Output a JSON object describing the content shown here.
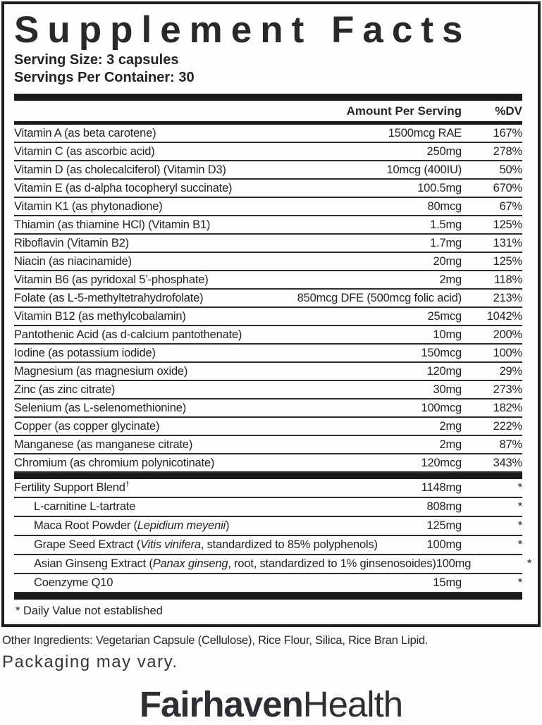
{
  "colors": {
    "ink": "#28282a",
    "bar": "#1b1b1d",
    "panel_border": "#1e1e20",
    "background": "#fdfdfd"
  },
  "panel": {
    "title": "Supplement Facts",
    "serving_size": "Serving Size: 3 capsules",
    "servings_per_container": "Servings Per Container: 30",
    "columns": {
      "amount": "Amount Per Serving",
      "dv": "%DV"
    },
    "nutrients": [
      {
        "name": "Vitamin A (as beta carotene)",
        "amount": "1500mcg RAE",
        "dv": "167%"
      },
      {
        "name": "Vitamin C (as ascorbic acid)",
        "amount": "250mg",
        "dv": "278%"
      },
      {
        "name": "Vitamin D (as cholecalciferol) (Vitamin D3)",
        "amount": "10mcg (400IU)",
        "dv": "50%"
      },
      {
        "name": "Vitamin E (as d-alpha tocopheryl succinate)",
        "amount": "100.5mg",
        "dv": "670%"
      },
      {
        "name": "Vitamin K1 (as phytonadione)",
        "amount": "80mcg",
        "dv": "67%"
      },
      {
        "name": "Thiamin (as thiamine HCl) (Vitamin B1)",
        "amount": "1.5mg",
        "dv": "125%"
      },
      {
        "name": "Riboflavin (Vitamin B2)",
        "amount": "1.7mg",
        "dv": "131%"
      },
      {
        "name": "Niacin (as niacinamide)",
        "amount": "20mg",
        "dv": "125%"
      },
      {
        "name": "Vitamin B6 (as pyridoxal 5’-phosphate)",
        "amount": "2mg",
        "dv": "118%"
      },
      {
        "name": "Folate (as L-5-methyltetrahydrofolate)",
        "amount": "850mcg DFE (500mcg folic acid)",
        "dv": "213%"
      },
      {
        "name": "Vitamin B12 (as methylcobalamin)",
        "amount": "25mcg",
        "dv": "1042%"
      },
      {
        "name": "Pantothenic Acid (as d-calcium pantothenate)",
        "amount": "10mg",
        "dv": "200%"
      },
      {
        "name": "Iodine (as potassium iodide)",
        "amount": "150mcg",
        "dv": "100%"
      },
      {
        "name": "Magnesium (as magnesium oxide)",
        "amount": "120mg",
        "dv": "29%"
      },
      {
        "name": "Zinc (as zinc citrate)",
        "amount": "30mg",
        "dv": "273%"
      },
      {
        "name": "Selenium (as L-selenomethionine)",
        "amount": "100mcg",
        "dv": "182%"
      },
      {
        "name": "Copper (as copper glycinate)",
        "amount": "2mg",
        "dv": "222%"
      },
      {
        "name": "Manganese (as manganese citrate)",
        "amount": "2mg",
        "dv": "87%"
      },
      {
        "name": "Chromium (as chromium polynicotinate)",
        "amount": "120mcg",
        "dv": "343%"
      }
    ],
    "blend": {
      "header": {
        "name_parts": [
          {
            "t": "Fertility Support Blend"
          },
          {
            "t": "†",
            "sup": true
          }
        ],
        "amount": "1148mg",
        "dv": "*"
      },
      "items": [
        {
          "name_parts": [
            {
              "t": "L-carnitine L-tartrate"
            }
          ],
          "amount": "808mg",
          "dv": "*"
        },
        {
          "name_parts": [
            {
              "t": "Maca Root Powder ("
            },
            {
              "t": "Lepidium meyenii",
              "i": true
            },
            {
              "t": ")"
            }
          ],
          "amount": "125mg",
          "dv": "*"
        },
        {
          "name_parts": [
            {
              "t": "Grape Seed Extract ("
            },
            {
              "t": "Vitis vinifera",
              "i": true
            },
            {
              "t": ", standardized to 85% polyphenols)"
            }
          ],
          "amount": "100mg",
          "dv": "*"
        },
        {
          "name_parts": [
            {
              "t": "Asian Ginseng Extract ("
            },
            {
              "t": "Panax ginseng",
              "i": true
            },
            {
              "t": ", root, standardized to 1% ginsenosoides)"
            }
          ],
          "amount": "100mg",
          "dv": "*"
        },
        {
          "name_parts": [
            {
              "t": "Coenzyme Q10"
            }
          ],
          "amount": "15mg",
          "dv": "*"
        }
      ]
    },
    "footnote": "* Daily Value not established"
  },
  "other_ingredients": "Other Ingredients: Vegetarian Capsule (Cellulose), Rice Flour, Silica, Rice Bran Lipid.",
  "packaging_note": "Packaging may vary.",
  "brand": {
    "bold": "Fairhaven",
    "light": "Health"
  }
}
